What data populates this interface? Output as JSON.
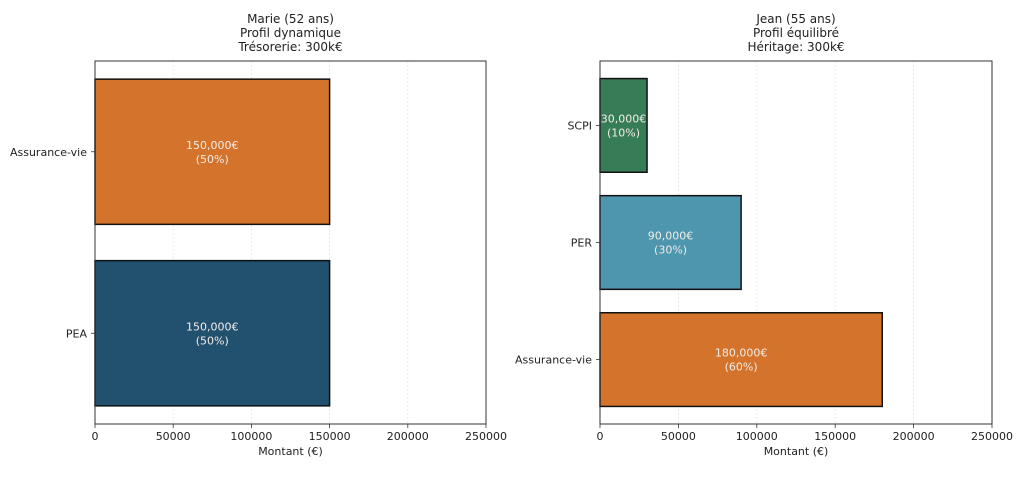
{
  "chart_data": [
    {
      "type": "bar",
      "orientation": "horizontal",
      "title": [
        "Marie (52 ans)",
        "Profil dynamique",
        "Trésorerie: 300k€"
      ],
      "xlabel": "Montant (€)",
      "ylabel": "",
      "xlim": [
        0,
        250000
      ],
      "xticks": [
        "0",
        "50000",
        "100000",
        "150000",
        "200000",
        "250000"
      ],
      "grid": "vertical dashed",
      "categories": [
        "PEA",
        "Assurance-vie"
      ],
      "values": [
        150000,
        150000
      ],
      "colors": [
        "#22506F",
        "#D4742C"
      ],
      "data_labels": [
        [
          "150,000€",
          "(50%)"
        ],
        [
          "150,000€",
          "(50%)"
        ]
      ]
    },
    {
      "type": "bar",
      "orientation": "horizontal",
      "title": [
        "Jean (55 ans)",
        "Profil équilibré",
        "Héritage: 300k€"
      ],
      "xlabel": "Montant (€)",
      "ylabel": "",
      "xlim": [
        0,
        250000
      ],
      "xticks": [
        "0",
        "50000",
        "100000",
        "150000",
        "200000",
        "250000"
      ],
      "grid": "vertical dashed",
      "categories": [
        "Assurance-vie",
        "PER",
        "SCPI"
      ],
      "values": [
        180000,
        90000,
        30000
      ],
      "colors": [
        "#D4742C",
        "#4E96AE",
        "#367D57"
      ],
      "data_labels": [
        [
          "180,000€",
          "(60%)"
        ],
        [
          "90,000€",
          "(30%)"
        ],
        [
          "30,000€",
          "(10%)"
        ]
      ]
    }
  ]
}
